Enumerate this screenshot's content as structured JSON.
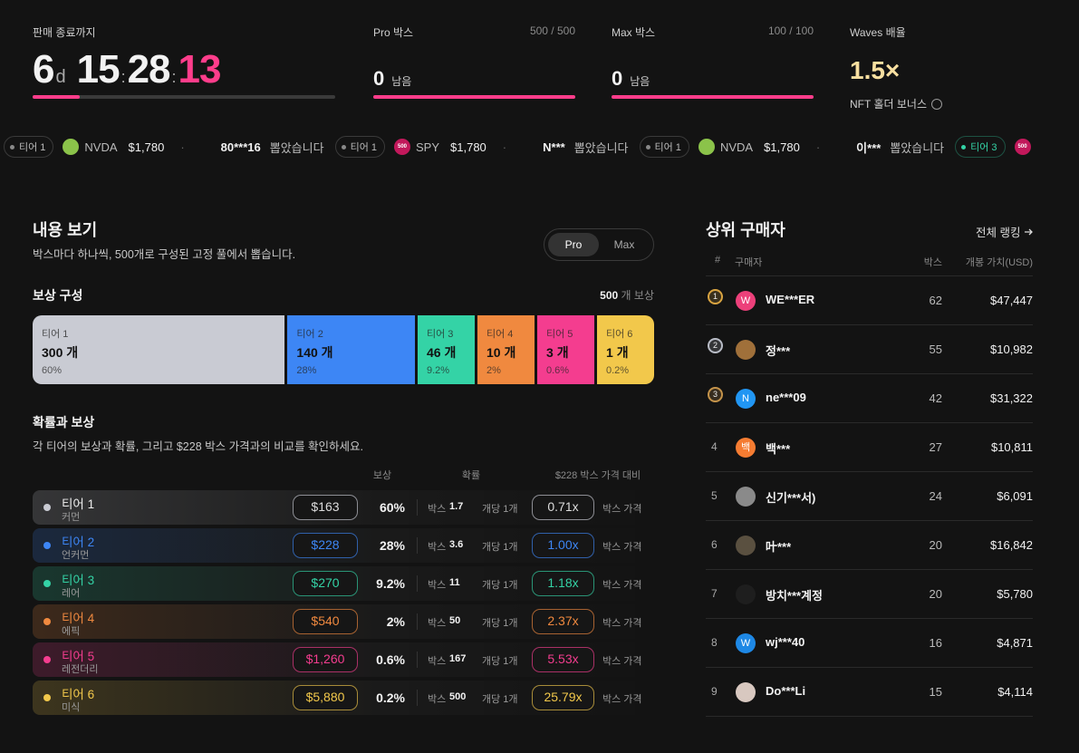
{
  "header": {
    "countdown": {
      "label": "판매 종료까지",
      "days": "6",
      "days_unit": "d",
      "hours": "15",
      "minutes": "28",
      "seconds": "13",
      "separator": ":"
    },
    "pro_box": {
      "label": "Pro 박스",
      "count": "500 / 500",
      "remaining": "0",
      "remaining_label": "남음"
    },
    "max_box": {
      "label": "Max 박스",
      "count": "100 / 100",
      "remaining": "0",
      "remaining_label": "남음"
    },
    "waves": {
      "label": "Waves 배율",
      "value": "1.5×",
      "note": "NFT 홀더 보너스"
    }
  },
  "ticker": {
    "separator": "·",
    "items": [
      {
        "tier": "티어 1",
        "icon_color": "#8bc34a",
        "symbol": "NVDA",
        "price": "$1,780",
        "user": "80***16",
        "action": "뽑았습니다"
      },
      {
        "tier": "티어 1",
        "icon": "500",
        "icon_color": "#c2185b",
        "symbol": "SPY",
        "price": "$1,780",
        "user": "N***",
        "action": "뽑았습니다"
      },
      {
        "tier": "티어 1",
        "icon_color": "#8bc34a",
        "symbol": "NVDA",
        "price": "$1,780",
        "user": "이***",
        "action": "뽑았습니다"
      },
      {
        "tier": "티어 3",
        "tier_color": "#34d3a6",
        "icon": "500",
        "icon_color": "#c2185b"
      }
    ]
  },
  "contents": {
    "title": "내용 보기",
    "description": "박스마다 하나씩, 500개로 구성된 고정 풀에서 뽑습니다.",
    "toggle": [
      "Pro",
      "Max"
    ],
    "reward": {
      "title": "보상 구성",
      "total": "500",
      "total_unit": "개 보상",
      "unit": "개",
      "tiers": [
        {
          "name": "티어 1",
          "count": 300,
          "pct": "60%",
          "color": "#c9cbd3"
        },
        {
          "name": "티어 2",
          "count": 140,
          "pct": "28%",
          "color": "#3d86f5"
        },
        {
          "name": "티어 3",
          "count": 46,
          "pct": "9.2%",
          "color": "#34d3a6"
        },
        {
          "name": "티어 4",
          "count": 10,
          "pct": "2%",
          "color": "#f0893f"
        },
        {
          "name": "티어 5",
          "count": 3,
          "pct": "0.6%",
          "color": "#f43d8f"
        },
        {
          "name": "티어 6",
          "count": 1,
          "pct": "0.2%",
          "color": "#f2c84b"
        }
      ]
    }
  },
  "odds": {
    "title": "확률과 보상",
    "description": "각 티어의 보상과 확률, 그리고 $228 박스 가격과의 비교를 확인하세요.",
    "columns": [
      "보상",
      "확률",
      "$228 박스 가격 대비"
    ],
    "rows": [
      {
        "tier": "티어 1",
        "rarity": "커먼",
        "reward": "$163",
        "prob": "60%",
        "box_label": "박스",
        "box_n": "1.7",
        "per": "개당 1개",
        "ratio": "0.71x",
        "ratio_label": "박스 가격"
      },
      {
        "tier": "티어 2",
        "rarity": "언커먼",
        "reward": "$228",
        "prob": "28%",
        "box_label": "박스",
        "box_n": "3.6",
        "per": "개당 1개",
        "ratio": "1.00x",
        "ratio_label": "박스 가격"
      },
      {
        "tier": "티어 3",
        "rarity": "레어",
        "reward": "$270",
        "prob": "9.2%",
        "box_label": "박스",
        "box_n": "11",
        "per": "개당 1개",
        "ratio": "1.18x",
        "ratio_label": "박스 가격"
      },
      {
        "tier": "티어 4",
        "rarity": "에픽",
        "reward": "$540",
        "prob": "2%",
        "box_label": "박스",
        "box_n": "50",
        "per": "개당 1개",
        "ratio": "2.37x",
        "ratio_label": "박스 가격"
      },
      {
        "tier": "티어 5",
        "rarity": "레전더리",
        "reward": "$1,260",
        "prob": "0.6%",
        "box_label": "박스",
        "box_n": "167",
        "per": "개당 1개",
        "ratio": "5.53x",
        "ratio_label": "박스 가격"
      },
      {
        "tier": "티어 6",
        "rarity": "미식",
        "reward": "$5,880",
        "prob": "0.2%",
        "box_label": "박스",
        "box_n": "500",
        "per": "개당 1개",
        "ratio": "25.79x",
        "ratio_label": "박스 가격"
      }
    ]
  },
  "ranking": {
    "title": "상위 구매자",
    "link": "전체 랭킹",
    "columns": [
      "#",
      "구매자",
      "박스",
      "개봉 가치(USD)"
    ],
    "rows": [
      {
        "rank": 1,
        "medal": "#d9a441",
        "avatar": "W",
        "avatar_color": "#ec407a",
        "name": "WE***ER",
        "boxes": 62,
        "value": "$47,447"
      },
      {
        "rank": 2,
        "medal": "#b8bcc6",
        "avatar_color": "#a0703a",
        "name": "정***",
        "boxes": 55,
        "value": "$10,982"
      },
      {
        "rank": 3,
        "medal": "#c4934a",
        "avatar": "N",
        "avatar_color": "#2196f3",
        "name": "ne***09",
        "boxes": 42,
        "value": "$31,322"
      },
      {
        "rank": 4,
        "avatar": "백",
        "avatar_color": "#f57c32",
        "name": "백***",
        "boxes": 27,
        "value": "$10,811"
      },
      {
        "rank": 5,
        "avatar_color": "#8a8a8a",
        "name": "신기***서)",
        "boxes": 24,
        "value": "$6,091"
      },
      {
        "rank": 6,
        "avatar_color": "#5a5040",
        "name": "叶***",
        "boxes": 20,
        "value": "$16,842"
      },
      {
        "rank": 7,
        "avatar_color": "#1e1e1e",
        "name": "방치***계정",
        "boxes": 20,
        "value": "$5,780"
      },
      {
        "rank": 8,
        "avatar": "W",
        "avatar_color": "#1e88e5",
        "name": "wj***40",
        "boxes": 16,
        "value": "$4,871"
      },
      {
        "rank": 9,
        "avatar_color": "#d8c8c0",
        "name": "Do***Li",
        "boxes": 15,
        "value": "$4,114"
      }
    ]
  }
}
